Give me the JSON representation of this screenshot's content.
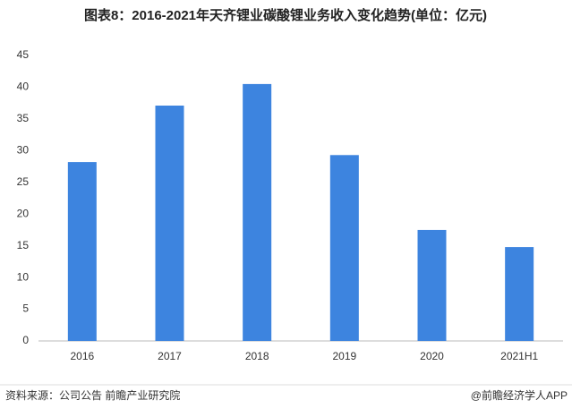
{
  "chart_data": {
    "type": "bar",
    "title": "图表8：2016-2021年天齐锂业碳酸锂业务收入变化趋势(单位：亿元)",
    "categories": [
      "2016",
      "2017",
      "2018",
      "2019",
      "2020",
      "2021H1"
    ],
    "values": [
      28.2,
      37.1,
      40.5,
      29.3,
      17.5,
      14.8
    ],
    "color": "#3d84df",
    "ylim": [
      0,
      45
    ],
    "yticks": [
      0,
      5,
      10,
      15,
      20,
      25,
      30,
      35,
      40,
      45
    ],
    "grid": false,
    "source": "资料来源：公司公告 前瞻产业研究院",
    "credit": "@前瞻经济学人APP"
  }
}
